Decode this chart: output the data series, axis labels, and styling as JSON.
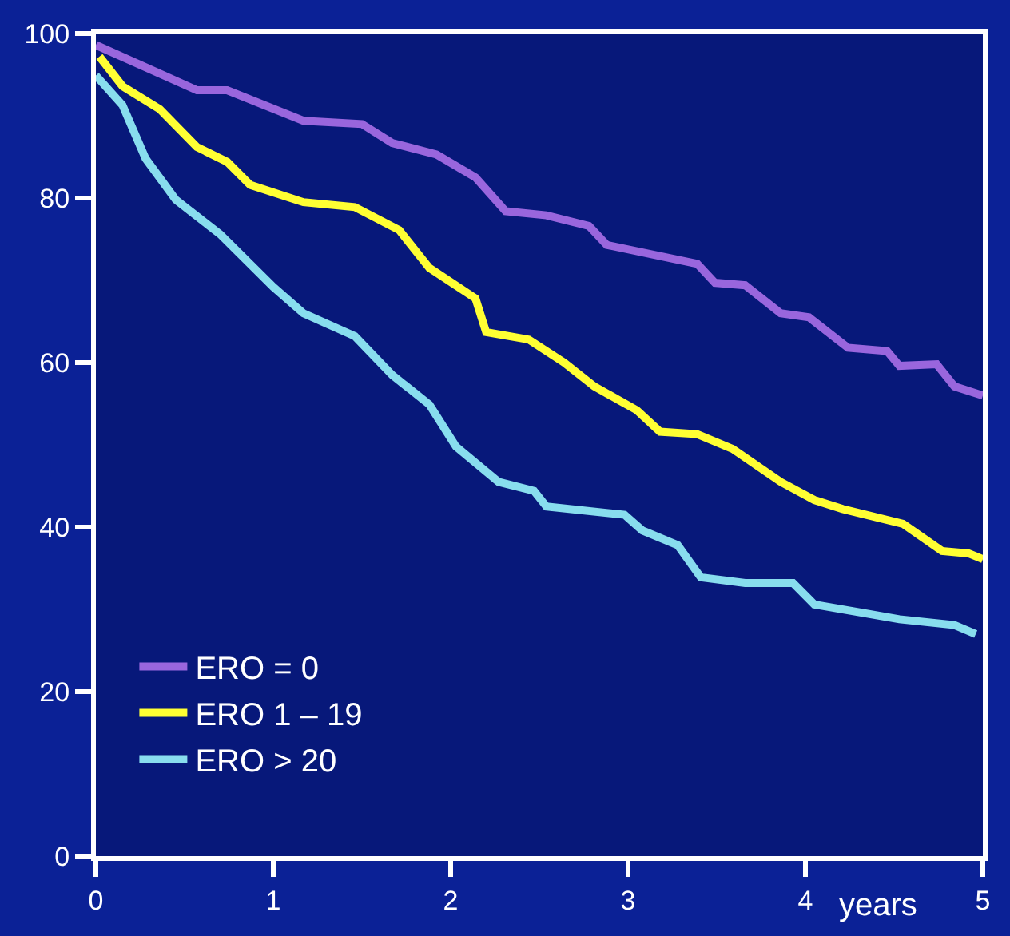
{
  "chart_data": {
    "type": "line",
    "xlabel": "years",
    "xlim": [
      0,
      5
    ],
    "ylim": [
      0,
      100
    ],
    "xticks": [
      0,
      1,
      2,
      3,
      4,
      5
    ],
    "yticks": [
      0,
      20,
      40,
      60,
      80,
      100
    ],
    "grid": false,
    "legend": "bottom left",
    "marker": "none",
    "line_style": "solid",
    "series": [
      {
        "name": "ERO = 0",
        "color": "#9966dd",
        "x": [
          0,
          0.57,
          0.74,
          1.17,
          1.5,
          1.67,
          1.92,
          2.14,
          2.31,
          2.54,
          2.78,
          2.88,
          3.39,
          3.49,
          3.66,
          3.86,
          4.02,
          4.24,
          4.46,
          4.53,
          4.74,
          4.84,
          5.0
        ],
        "values": [
          98.6,
          93.1,
          93.1,
          89.4,
          89.0,
          86.7,
          85.3,
          82.5,
          78.4,
          77.9,
          76.6,
          74.3,
          72.0,
          69.7,
          69.4,
          66.0,
          65.5,
          61.8,
          61.4,
          59.6,
          59.8,
          57.1,
          56.0
        ]
      },
      {
        "name": "ERO 1 – 19",
        "color": "#ffff33",
        "x": [
          0.02,
          0.15,
          0.36,
          0.57,
          0.74,
          0.87,
          1.17,
          1.46,
          1.71,
          1.88,
          2.14,
          2.2,
          2.44,
          2.64,
          2.81,
          3.05,
          3.18,
          3.39,
          3.59,
          3.86,
          4.05,
          4.21,
          4.55,
          4.77,
          4.92,
          5.0
        ],
        "values": [
          97.2,
          93.6,
          90.8,
          86.2,
          84.4,
          81.6,
          79.5,
          78.9,
          76.1,
          71.5,
          67.8,
          63.7,
          62.8,
          60.0,
          57.1,
          54.2,
          51.6,
          51.3,
          49.5,
          45.5,
          43.3,
          42.2,
          40.4,
          37.1,
          36.8,
          36.1
        ]
      },
      {
        "name": "ERO > 20",
        "color": "#88ddee",
        "x": [
          0,
          0.15,
          0.28,
          0.45,
          0.7,
          1.0,
          1.17,
          1.46,
          1.67,
          1.88,
          2.03,
          2.27,
          2.47,
          2.54,
          2.98,
          3.08,
          3.28,
          3.41,
          3.66,
          3.93,
          4.05,
          4.53,
          4.84,
          4.96
        ],
        "values": [
          94.9,
          91.3,
          84.8,
          79.8,
          75.6,
          69.2,
          66.0,
          63.2,
          58.5,
          54.9,
          49.8,
          45.5,
          44.4,
          42.5,
          41.5,
          39.6,
          37.8,
          33.9,
          33.2,
          33.2,
          30.6,
          28.8,
          28.1,
          27.0
        ]
      }
    ]
  }
}
